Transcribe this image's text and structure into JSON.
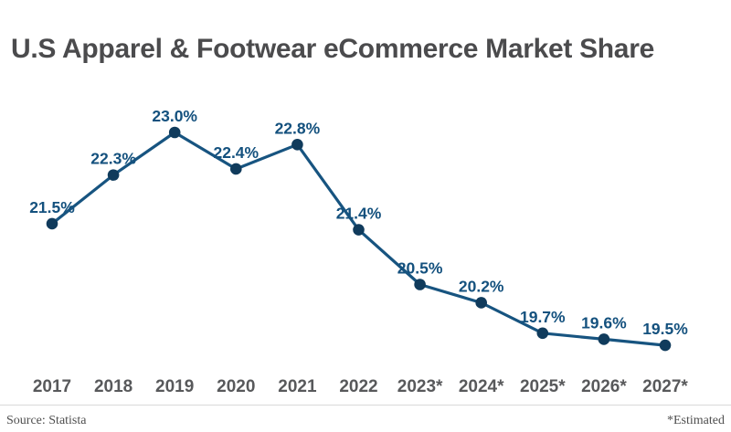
{
  "title": "U.S Apparel & Footwear eCommerce Market Share",
  "footer": {
    "source": "Source: Statista",
    "note": "*Estimated"
  },
  "colors": {
    "line": "#175480",
    "marker": "#103b5c",
    "value_label": "#14517e",
    "title_text": "#4b4b4d",
    "axis_text": "#58595b",
    "divider": "#d9d9d9",
    "background": "#ffffff"
  },
  "chart_data": {
    "type": "line",
    "title": "U.S Apparel & Footwear eCommerce Market Share",
    "categories": [
      "2017",
      "2018",
      "2019",
      "2020",
      "2021",
      "2022",
      "2023*",
      "2024*",
      "2025*",
      "2026*",
      "2027*"
    ],
    "values": [
      21.5,
      22.3,
      23.0,
      22.4,
      22.8,
      21.4,
      20.5,
      20.2,
      19.7,
      19.6,
      19.5
    ],
    "point_labels": [
      "21.5%",
      "22.3%",
      "23.0%",
      "22.4%",
      "22.8%",
      "21.4%",
      "20.5%",
      "20.2%",
      "19.7%",
      "19.6%",
      "19.5%"
    ],
    "xlabel": "",
    "ylabel": "",
    "ylim": [
      19.0,
      23.5
    ],
    "grid": false,
    "legend": false,
    "y_axis_visible": false,
    "note": "*Estimated",
    "source": "Source: Statista"
  }
}
